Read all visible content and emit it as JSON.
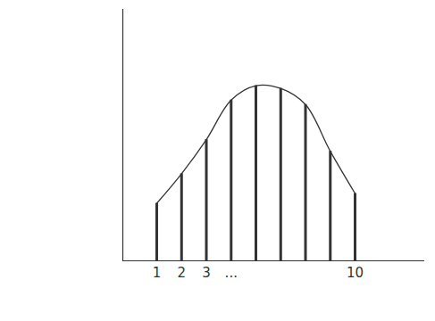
{
  "chart_data": {
    "type": "bar",
    "categories": [
      "1",
      "2",
      "3",
      "...",
      null,
      null,
      null,
      null,
      "10"
    ],
    "values": [
      64,
      97,
      135,
      179,
      195,
      192,
      174,
      122,
      75
    ],
    "color": "#333333",
    "ylim": [
      0,
      280
    ],
    "yticks": [],
    "tick_labels": "x"
  }
}
